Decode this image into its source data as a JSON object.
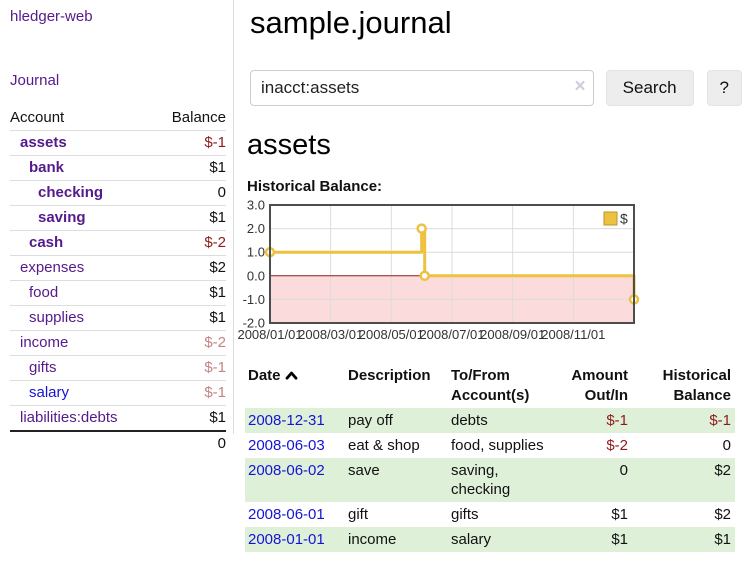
{
  "app": {
    "name": "hledger-web",
    "nav_journal": "Journal"
  },
  "sidebar": {
    "col_account": "Account",
    "col_balance": "Balance",
    "accounts": [
      {
        "name": "assets",
        "balance": "$-1"
      },
      {
        "name": "bank",
        "balance": "$1"
      },
      {
        "name": "checking",
        "balance": "0"
      },
      {
        "name": "saving",
        "balance": "$1"
      },
      {
        "name": "cash",
        "balance": "$-2"
      },
      {
        "name": "expenses",
        "balance": "$2"
      },
      {
        "name": "food",
        "balance": "$1"
      },
      {
        "name": "supplies",
        "balance": "$1"
      },
      {
        "name": "income",
        "balance": "$-2"
      },
      {
        "name": "gifts",
        "balance": "$-1"
      },
      {
        "name": "salary",
        "balance": "$-1"
      },
      {
        "name": "liabilities:debts",
        "balance": "$1"
      }
    ],
    "total": "0"
  },
  "header": {
    "title": "sample.journal"
  },
  "search": {
    "value": "inacct:assets",
    "clear_icon": "×",
    "button_label": "Search",
    "help_label": "?"
  },
  "register": {
    "heading": "assets",
    "chart_heading": "Historical Balance:",
    "columns": {
      "date": "Date",
      "description": "Description",
      "account": "To/From Account(s)",
      "amount": "Amount Out/In",
      "balance": "Historical Balance"
    },
    "rows": [
      {
        "date": "2008-12-31",
        "description": "pay off",
        "account": "debts",
        "amount": "$-1",
        "balance": "$-1"
      },
      {
        "date": "2008-06-03",
        "description": "eat & shop",
        "account": "food, supplies",
        "amount": "$-2",
        "balance": "0"
      },
      {
        "date": "2008-06-02",
        "description": "save",
        "account": "saving, checking",
        "amount": "0",
        "balance": "$2"
      },
      {
        "date": "2008-06-01",
        "description": "gift",
        "account": "gifts",
        "amount": "$1",
        "balance": "$2"
      },
      {
        "date": "2008-01-01",
        "description": "income",
        "account": "salary",
        "amount": "$1",
        "balance": "$1"
      }
    ]
  },
  "chart_data": {
    "type": "line",
    "title": "Historical Balance:",
    "legend_position": "top-right",
    "grid": true,
    "xlim_months": [
      0,
      12
    ],
    "ylim": [
      -2,
      3
    ],
    "y_ticks": [
      "3.0",
      "2.0",
      "1.0",
      "0.0",
      "-1.0",
      "-2.0"
    ],
    "x_ticks": [
      {
        "label": "2008/01/01",
        "month_x": 0
      },
      {
        "label": "2008/03/01",
        "month_x": 2
      },
      {
        "label": "2008/05/01",
        "month_x": 4
      },
      {
        "label": "2008/07/01",
        "month_x": 6
      },
      {
        "label": "2008/09/01",
        "month_x": 8
      },
      {
        "label": "2008/11/01",
        "month_x": 10
      }
    ],
    "series": [
      {
        "name": "$",
        "color": "#EDC240",
        "style": "steps",
        "points": [
          {
            "date": "2008-01-01",
            "month_x": 0,
            "value": 1
          },
          {
            "date": "2008-06-01",
            "month_x": 5.0,
            "value": 2
          },
          {
            "date": "2008-06-03",
            "month_x": 5.1,
            "value": 0
          },
          {
            "date": "2008-12-31",
            "month_x": 12,
            "value": -1
          }
        ]
      }
    ],
    "negative_region_color": "#fbdbdb",
    "zero_line_color": "#8b1a1a",
    "grid_color": "#dcdcdc",
    "border_color": "#4d4d4d"
  },
  "colors": {
    "accent_gold": "#EDC240",
    "stripe_green": "#dff0d8",
    "neg_strong": "#8f1a1a",
    "neg_soft": "#c28585",
    "link_purple": "#551A8B",
    "link_blue": "#1414D6"
  }
}
